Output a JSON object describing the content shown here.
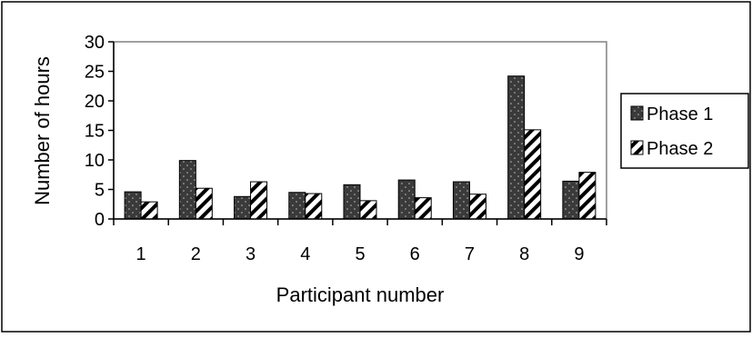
{
  "chart_data": {
    "type": "bar",
    "title": "",
    "xlabel": "Participant number",
    "ylabel": "Number of hours",
    "categories": [
      "1",
      "2",
      "3",
      "4",
      "5",
      "6",
      "7",
      "8",
      "9"
    ],
    "ylim": [
      0,
      30
    ],
    "yticks": [
      "0",
      "5",
      "10",
      "15",
      "20",
      "25",
      "30"
    ],
    "grid": false,
    "legend_position": "right",
    "series": [
      {
        "name": "Phase 1",
        "values": [
          4.6,
          9.9,
          3.8,
          4.5,
          5.8,
          6.6,
          6.3,
          24.2,
          6.4
        ],
        "color": "#3a3a3a",
        "pattern": "dark-dotted"
      },
      {
        "name": "Phase 2",
        "values": [
          2.9,
          5.2,
          6.3,
          4.3,
          3.1,
          3.6,
          4.2,
          15.1,
          7.9
        ],
        "color": "#ffffff",
        "pattern": "diagonal-hatch"
      }
    ]
  }
}
